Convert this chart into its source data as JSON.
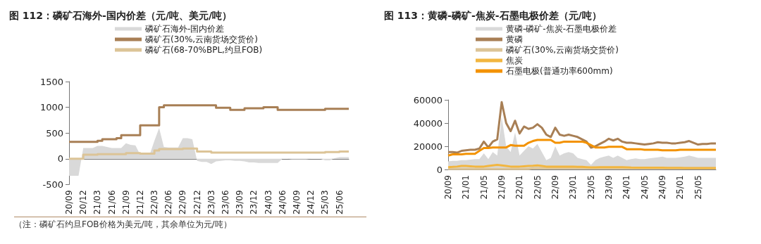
{
  "chart_data": [
    {
      "type": "step",
      "title": "图 112：磷矿石海外-国内价差（元/吨、美元/吨）",
      "categories": [
        "20/09",
        null,
        null,
        "20/12",
        null,
        null,
        "21/03",
        null,
        null,
        "21/06",
        null,
        null,
        "21/09",
        null,
        null,
        "21/12",
        null,
        null,
        "22/03",
        null,
        null,
        "22/06",
        null,
        null,
        "22/09",
        null,
        null,
        "22/12",
        null,
        null,
        "23/03",
        null,
        null,
        "23/06",
        null,
        null,
        "23/09",
        null,
        null,
        "23/12",
        null,
        null,
        "24/03",
        null,
        null,
        "24/06",
        null,
        null,
        "24/09",
        null,
        null,
        "24/12",
        null,
        null,
        "25/03",
        null,
        null,
        "25/06",
        null,
        null
      ],
      "series": [
        {
          "name": "磷矿石海外-国内价差",
          "type": "area",
          "color": "#d9d9d9",
          "values": [
            -330,
            -330,
            -330,
            210,
            210,
            210,
            250,
            250,
            230,
            210,
            210,
            210,
            300,
            270,
            260,
            80,
            80,
            80,
            350,
            600,
            230,
            220,
            220,
            220,
            400,
            400,
            380,
            -40,
            -60,
            -60,
            -100,
            -50,
            -40,
            -30,
            -30,
            -40,
            -40,
            -50,
            -70,
            -70,
            -80,
            -80,
            -80,
            -80,
            -80,
            0,
            0,
            -10,
            -10,
            -10,
            -10,
            0,
            0,
            0,
            -30,
            -30,
            10,
            30,
            30,
            30
          ]
        },
        {
          "name": "磷矿石(30%,云南货场交货价)",
          "color": "#a87f55",
          "values": [
            330,
            330,
            330,
            330,
            330,
            330,
            350,
            380,
            380,
            380,
            400,
            460,
            460,
            460,
            460,
            650,
            650,
            650,
            650,
            1000,
            1040,
            1040,
            1040,
            1040,
            1040,
            1040,
            1040,
            1040,
            1040,
            1040,
            1040,
            990,
            990,
            990,
            950,
            950,
            950,
            980,
            980,
            980,
            980,
            1000,
            1000,
            1000,
            950,
            950,
            950,
            950,
            950,
            950,
            950,
            950,
            950,
            950,
            970,
            970,
            970,
            970,
            970,
            970
          ]
        },
        {
          "name": "磷矿石(68-70%BPL,约旦FOB)",
          "color": "#dcc497",
          "values": [
            0,
            0,
            0,
            80,
            80,
            80,
            90,
            90,
            90,
            90,
            90,
            90,
            110,
            110,
            110,
            100,
            100,
            100,
            160,
            190,
            190,
            190,
            190,
            190,
            200,
            200,
            200,
            140,
            140,
            140,
            120,
            120,
            120,
            120,
            120,
            120,
            120,
            120,
            120,
            120,
            120,
            120,
            120,
            120,
            120,
            120,
            120,
            120,
            120,
            120,
            120,
            120,
            120,
            120,
            130,
            130,
            130,
            140,
            140,
            140
          ]
        }
      ],
      "ylim": [
        -500,
        1500
      ],
      "yticks": [
        -500,
        0,
        500,
        1000,
        1500
      ],
      "legend": "top",
      "annotations": [
        "（注：磷矿石约旦FOB价格为美元/吨，其余单位为元/吨）"
      ]
    },
    {
      "type": "line",
      "title": "图 113：黄磷-磷矿-焦炭-石墨电极价差（元/吨）",
      "categories": [
        "20/09",
        null,
        null,
        null,
        "21/01",
        null,
        null,
        null,
        "21/05",
        null,
        null,
        null,
        "21/09",
        null,
        null,
        null,
        "22/01",
        null,
        null,
        null,
        "22/05",
        null,
        null,
        null,
        "22/09",
        null,
        null,
        null,
        "23/01",
        null,
        null,
        null,
        "23/05",
        null,
        null,
        null,
        "23/09",
        null,
        null,
        null,
        "24/01",
        null,
        null,
        null,
        "24/05",
        null,
        null,
        null,
        "24/09",
        null,
        null,
        null,
        "25/01",
        null,
        null,
        null,
        "25/05",
        null,
        null,
        null,
        null
      ],
      "series": [
        {
          "name": "黄磷-磷矿-焦炭-石墨电极价差",
          "type": "area",
          "color": "#d9d9d9",
          "values": [
            7000,
            7500,
            7500,
            8000,
            8000,
            8500,
            9000,
            9000,
            14000,
            9000,
            15000,
            12000,
            45000,
            20000,
            15000,
            32000,
            12000,
            16000,
            20000,
            18000,
            22000,
            15000,
            8000,
            10000,
            20000,
            12000,
            14000,
            15000,
            14000,
            10000,
            9000,
            8000,
            4000,
            8000,
            10000,
            11000,
            12000,
            10000,
            12000,
            10000,
            8000,
            9000,
            9500,
            9000,
            9000,
            9500,
            10000,
            10500,
            11000,
            10000,
            10000,
            10000,
            10500,
            11000,
            12000,
            11000,
            10000,
            10000,
            10000,
            10000,
            10000
          ]
        },
        {
          "name": "黄磷",
          "color": "#a87f55",
          "values": [
            15000,
            15000,
            14500,
            16000,
            16500,
            17000,
            17000,
            18000,
            24000,
            19000,
            24000,
            26000,
            58000,
            40000,
            33000,
            42000,
            31000,
            37000,
            35000,
            36000,
            39000,
            36000,
            30000,
            28000,
            36000,
            30000,
            29000,
            30000,
            29000,
            28000,
            26000,
            24000,
            18800,
            20000,
            22000,
            24000,
            26500,
            25000,
            26500,
            24000,
            23000,
            23000,
            22500,
            22000,
            21500,
            22000,
            22500,
            23500,
            23000,
            23000,
            22500,
            22500,
            23000,
            23500,
            24500,
            23000,
            21500,
            22000,
            22000,
            22500,
            22500
          ]
        },
        {
          "name": "磷矿石(30%,云南货场交货价)",
          "color": "#dcc497",
          "values": [
            500,
            500,
            500,
            500,
            500,
            500,
            500,
            500,
            500,
            500,
            500,
            500,
            500,
            500,
            500,
            500,
            500,
            500,
            500,
            1000,
            1000,
            1000,
            1000,
            1000,
            1000,
            1000,
            1000,
            1000,
            1000,
            1000,
            1000,
            1000,
            1000,
            1000,
            1000,
            1000,
            1000,
            1000,
            1000,
            1000,
            1000,
            1000,
            1000,
            1000,
            1000,
            1000,
            1000,
            1000,
            1000,
            1000,
            1000,
            1000,
            1000,
            1000,
            1000,
            1000,
            1000,
            1000,
            1000,
            1000,
            1000
          ]
        },
        {
          "name": "焦炭",
          "color": "#f2b640",
          "values": [
            2000,
            2200,
            2500,
            3000,
            3000,
            2800,
            2500,
            2500,
            2500,
            3000,
            3500,
            4000,
            3500,
            3000,
            2500,
            2500,
            2500,
            2800,
            3000,
            3200,
            3500,
            3000,
            2500,
            2500,
            2500,
            2500,
            2500,
            2500,
            2500,
            2300,
            2200,
            2000,
            1800,
            1800,
            2000,
            2000,
            2000,
            2000,
            2000,
            2000,
            1800,
            1600,
            1500,
            1500,
            1500,
            1500,
            1500,
            1500,
            1500,
            1400,
            1400,
            1300,
            1300,
            1200,
            1200,
            1200,
            1200,
            1200,
            1200,
            1200,
            1200
          ]
        },
        {
          "name": "石墨电极(普通功率600mm)",
          "color": "#f39200",
          "values": [
            12000,
            13000,
            13000,
            13000,
            13500,
            13500,
            13500,
            16000,
            18500,
            18500,
            19000,
            19000,
            19000,
            19000,
            21000,
            20500,
            20500,
            20500,
            23000,
            24500,
            25500,
            25500,
            25500,
            25500,
            23000,
            23000,
            24000,
            24000,
            24000,
            24000,
            24000,
            23000,
            21000,
            19000,
            19000,
            19000,
            19500,
            19500,
            19500,
            19500,
            17500,
            17500,
            17500,
            17500,
            17000,
            17000,
            17000,
            17000,
            16500,
            16500,
            16500,
            16500,
            17000,
            17000,
            17000,
            17000,
            17000,
            17000,
            17000,
            17000,
            17000
          ]
        }
      ],
      "ylim": [
        0,
        60000
      ],
      "yticks": [
        0,
        20000,
        40000,
        60000
      ],
      "legend": "top"
    }
  ]
}
